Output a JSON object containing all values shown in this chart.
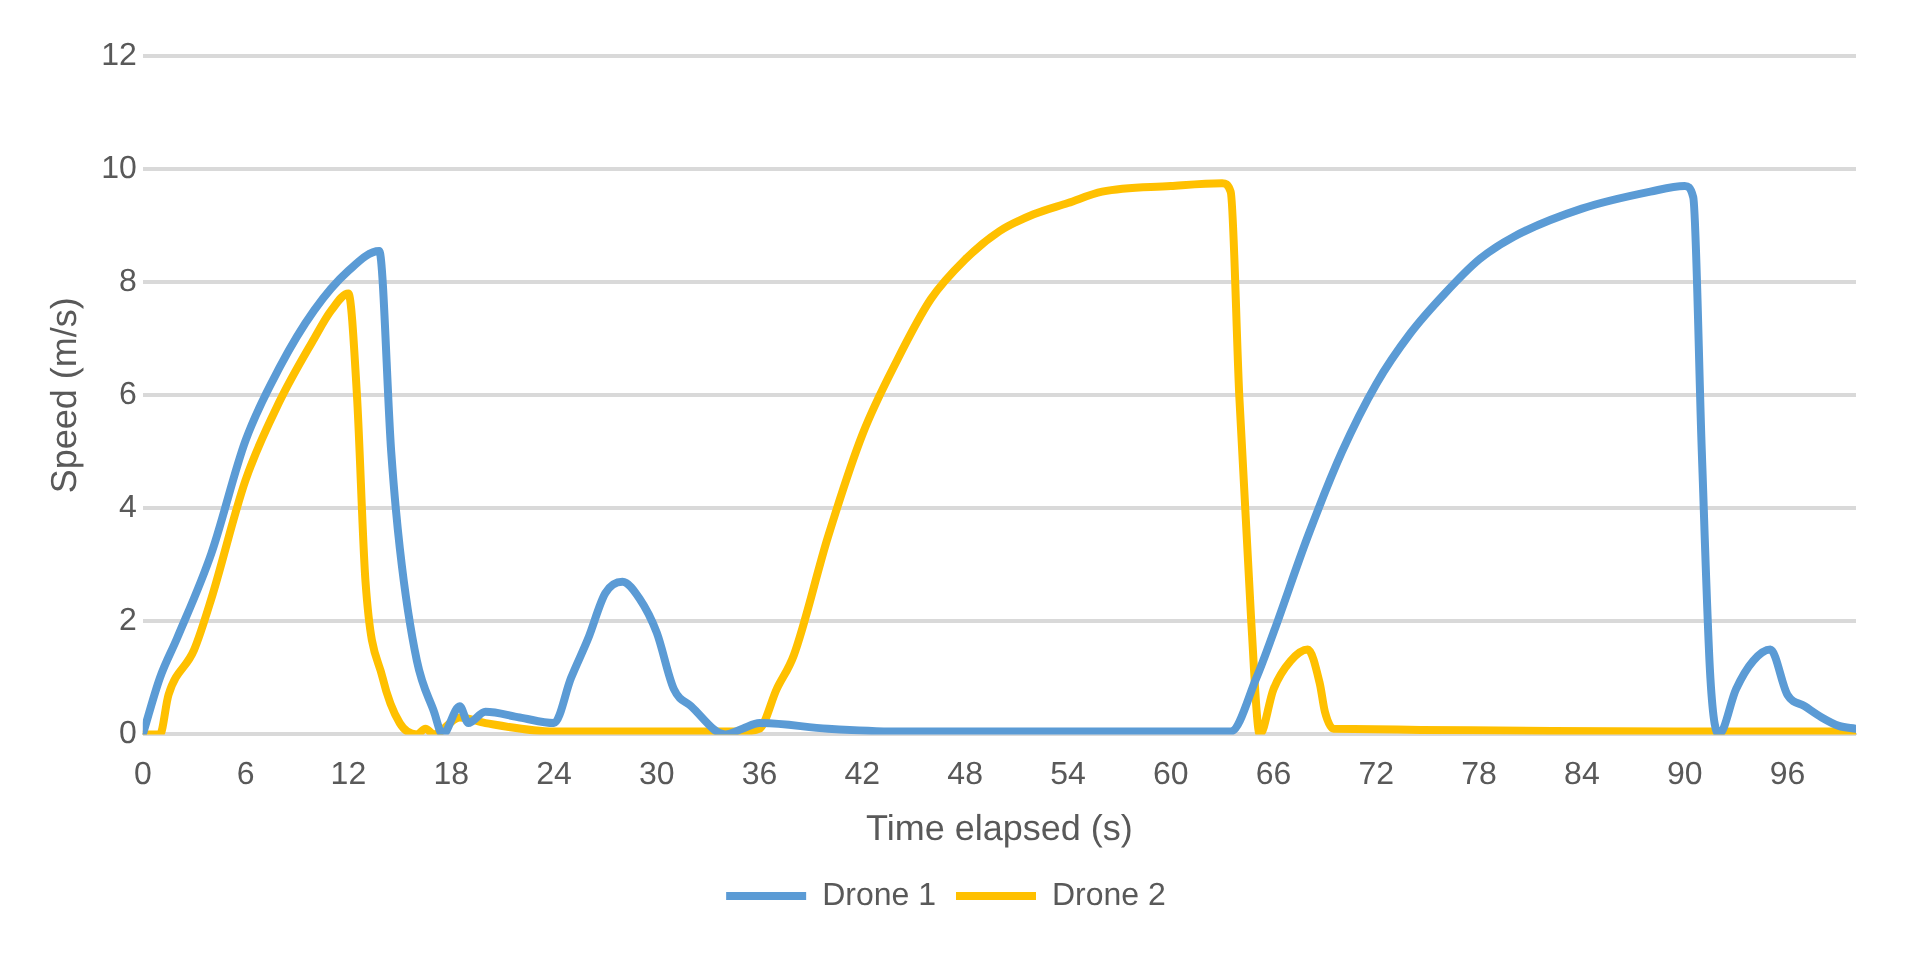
{
  "chart_data": {
    "type": "line",
    "xlabel": "Time elapsed (s)",
    "ylabel": "Speed (m/s)",
    "xlim": [
      0,
      100
    ],
    "xticks": [
      0,
      6,
      12,
      18,
      24,
      30,
      36,
      42,
      48,
      54,
      60,
      66,
      72,
      78,
      84,
      90,
      96
    ],
    "ylim": [
      0,
      12
    ],
    "yticks": [
      0,
      2,
      4,
      6,
      8,
      10,
      12
    ],
    "grid": "y",
    "legend": "bottom",
    "marker": "none",
    "line_style": "solid",
    "series": [
      {
        "name": "Drone 1",
        "color": "#5b9bd5",
        "x": [
          0,
          1,
          2,
          4,
          6,
          8,
          10,
          12,
          13.8,
          14.5,
          15,
          16,
          17,
          17.5,
          18.5,
          19,
          20,
          22,
          24,
          25,
          26,
          27,
          28,
          29,
          30,
          31,
          32,
          34,
          35,
          36,
          40,
          44,
          63.5,
          65,
          66,
          68,
          70,
          72,
          74,
          76,
          78,
          80,
          84,
          88,
          90,
          90.5,
          91,
          91.5,
          92,
          93,
          94,
          95,
          96,
          97,
          98,
          99,
          100
        ],
        "values": [
          0,
          1,
          1.7,
          3.2,
          5.2,
          6.5,
          7.5,
          8.2,
          8.55,
          5,
          3.3,
          1.3,
          0.4,
          0,
          0.5,
          0.2,
          0.4,
          0.3,
          0.2,
          1,
          1.7,
          2.5,
          2.7,
          2.4,
          1.8,
          0.8,
          0.5,
          0,
          0.1,
          0.2,
          0.1,
          0.05,
          0.05,
          1,
          1.8,
          3.5,
          5,
          6.2,
          7.1,
          7.8,
          8.4,
          8.8,
          9.3,
          9.6,
          9.7,
          9.5,
          5,
          1,
          0,
          0.8,
          1.3,
          1.5,
          0.7,
          0.5,
          0.3,
          0.15,
          0.1
        ]
      },
      {
        "name": "Drone 2",
        "color": "#ffc000",
        "x": [
          0,
          1,
          1.5,
          3,
          4,
          6,
          8,
          10,
          11,
          12,
          12.5,
          13,
          14,
          15,
          16,
          16.5,
          17,
          18.5,
          20,
          24,
          35,
          36,
          37,
          38,
          40,
          42,
          44,
          46,
          48,
          50,
          52,
          54,
          56,
          60,
          63,
          63.5,
          64,
          64.7,
          65.2,
          66,
          67,
          68,
          68.7,
          69,
          69.5,
          100
        ],
        "values": [
          0,
          0,
          0.7,
          1.5,
          2.4,
          4.5,
          5.9,
          7,
          7.5,
          7.8,
          6,
          2.7,
          1,
          0.2,
          0,
          0.1,
          0,
          0.3,
          0.2,
          0.05,
          0.05,
          0.1,
          0.8,
          1.4,
          3.5,
          5.3,
          6.6,
          7.7,
          8.4,
          8.9,
          9.2,
          9.4,
          9.6,
          9.7,
          9.75,
          9.6,
          6,
          2,
          0,
          0.8,
          1.3,
          1.5,
          0.9,
          0.4,
          0.1,
          0.05
        ]
      }
    ]
  }
}
